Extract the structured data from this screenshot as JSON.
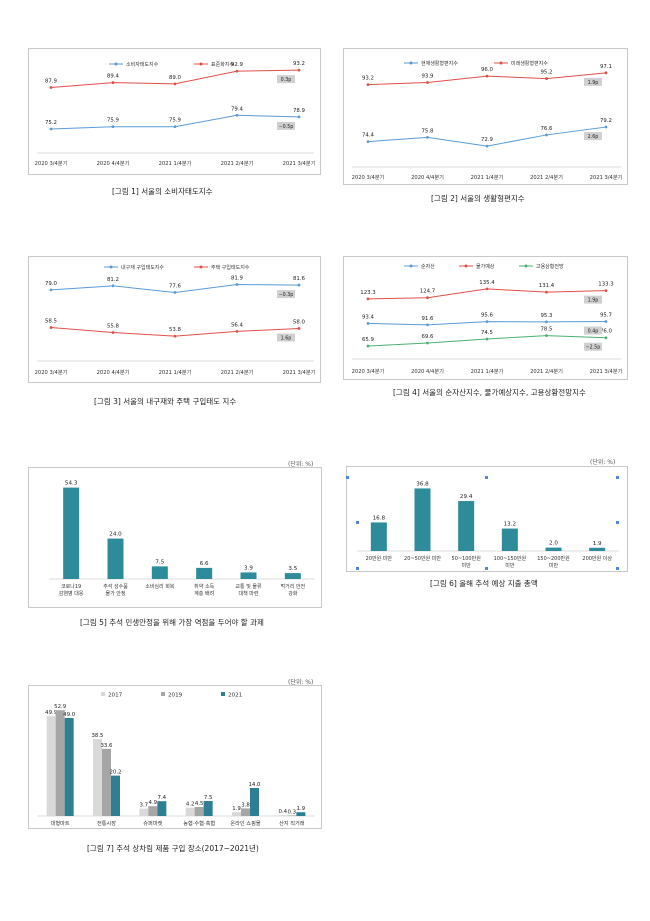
{
  "figures": {
    "f1": {
      "caption": "[그림 1] 서울의 소비자태도지수"
    },
    "f2": {
      "caption": "[그림 2] 서울의 생활형편지수"
    },
    "f3": {
      "caption": "[그림 3] 서울의 내구재와 주택 구입태도 지수"
    },
    "f4": {
      "caption": "[그림 4] 서울의 순자산지수, 물가예상지수, 고용상황전망지수"
    },
    "f5": {
      "caption": "[그림 5] 추석 민생안정을 위해 가장 역점을 두어야 할 과제",
      "unit": "(단위: %)"
    },
    "f6": {
      "caption": "[그림 6] 올해 추석 예상 지출 총액",
      "unit": "(단위: %)"
    },
    "f7": {
      "caption": "[그림 7] 추석 상차림 제품 구입 장소(2017~2021년)",
      "unit": "(단위: %)"
    }
  },
  "chart_data": [
    {
      "id": "f1",
      "type": "line",
      "categories": [
        "2020 3/4분기",
        "2020 4/4분기",
        "2021 1/4분기",
        "2021 2/4분기",
        "2021 3/4분기"
      ],
      "series": [
        {
          "name": "소비자태도지수",
          "values": [
            75.2,
            75.9,
            75.9,
            79.4,
            78.9
          ],
          "color": "#5b9bd5"
        },
        {
          "name": "표준화지수",
          "values": [
            87.9,
            89.4,
            89.0,
            92.9,
            93.2
          ],
          "color": "#e0504a"
        }
      ],
      "ylim": [
        70,
        96
      ],
      "annotations": [
        {
          "text": "0.3p",
          "series": 1,
          "index": 4
        },
        {
          "text": "−0.5p",
          "series": 0,
          "index": 4
        }
      ]
    },
    {
      "id": "f2",
      "type": "line",
      "categories": [
        "2020 3/4분기",
        "2020 4/4분기",
        "2021 1/4분기",
        "2021 2/4분기",
        "2021 3/4분기"
      ],
      "series": [
        {
          "name": "현재생활형편지수",
          "values": [
            74.4,
            75.8,
            72.9,
            76.6,
            79.2
          ],
          "color": "#5b9bd5"
        },
        {
          "name": "미래생활형편지수",
          "values": [
            93.2,
            93.9,
            96.0,
            95.2,
            97.1
          ],
          "color": "#e0504a"
        }
      ],
      "ylim": [
        68,
        101
      ],
      "annotations": [
        {
          "text": "2.6p",
          "series": 0,
          "index": 4
        },
        {
          "text": "1.9p",
          "series": 1,
          "index": 4
        }
      ]
    },
    {
      "id": "f3",
      "type": "line",
      "categories": [
        "2020 3/4분기",
        "2020 4/4분기",
        "2021 1/4분기",
        "2021 2/4분기",
        "2021 3/4분기"
      ],
      "series": [
        {
          "name": "내구재 구입태도지수",
          "values": [
            79.0,
            81.2,
            77.6,
            81.9,
            81.6
          ],
          "color": "#5b9bd5"
        },
        {
          "name": "주택 구입태도지수",
          "values": [
            58.5,
            55.8,
            53.8,
            56.4,
            58.0
          ],
          "color": "#e0504a"
        }
      ],
      "ylim": [
        49,
        86
      ],
      "annotations": [
        {
          "text": "−0.3p",
          "series": 0,
          "index": 4
        },
        {
          "text": "1.6p",
          "series": 1,
          "index": 4
        }
      ]
    },
    {
      "id": "f4",
      "type": "line",
      "categories": [
        "2020 3/4분기",
        "2020 4/4분기",
        "2021 1/4분기",
        "2021 2/4분기",
        "2021 3/4분기"
      ],
      "series": [
        {
          "name": "순자산",
          "values": [
            93.4,
            91.6,
            95.6,
            95.3,
            95.7
          ],
          "color": "#5b9bd5"
        },
        {
          "name": "물가예상",
          "values": [
            123.3,
            124.7,
            135.4,
            131.4,
            133.3
          ],
          "color": "#e0504a"
        },
        {
          "name": "고용상황전망",
          "values": [
            65.9,
            69.6,
            74.5,
            78.5,
            76.0
          ],
          "color": "#4cb070"
        }
      ],
      "ylim": [
        55,
        145
      ],
      "annotations": [
        {
          "text": "1.9p",
          "series": 1,
          "index": 4
        },
        {
          "text": "0.4p",
          "series": 0,
          "index": 4
        },
        {
          "text": "−2.5p",
          "series": 2,
          "index": 4
        }
      ]
    },
    {
      "id": "f5",
      "type": "bar",
      "categories": [
        "코로나19 감염병 대응",
        "추석 성수품 물가 안정",
        "소비심리 회복",
        "취약 소득 계층 배려",
        "교통 및 물류 대책 마련",
        "먹거리 안전 강화"
      ],
      "values": [
        54.3,
        24.0,
        7.5,
        6.6,
        3.9,
        3.5
      ],
      "ylim": [
        0,
        60
      ],
      "color": "#2e8b9a"
    },
    {
      "id": "f6",
      "type": "bar",
      "categories": [
        "20만원 미만",
        "20~50만원 미만",
        "50~100만원 미만",
        "100~150만원 미만",
        "150~200만원 미만",
        "200만원 이상"
      ],
      "values": [
        16.8,
        36.8,
        29.4,
        13.2,
        2.0,
        1.9
      ],
      "ylim": [
        0,
        40
      ],
      "color": "#2e8b9a"
    },
    {
      "id": "f7",
      "type": "bar",
      "categories": [
        "대형마트",
        "전통시장",
        "슈퍼마켓",
        "농협·수협·축협",
        "온라인 쇼핑몰",
        "산지 직거래"
      ],
      "series": [
        {
          "name": "2017",
          "values": [
            49.9,
            38.5,
            3.7,
            4.2,
            1.9,
            0.4
          ],
          "color": "#d9d9d9"
        },
        {
          "name": "2019",
          "values": [
            52.9,
            33.6,
            4.9,
            4.5,
            3.8,
            0.3
          ],
          "color": "#a6a6a6"
        },
        {
          "name": "2021",
          "values": [
            49.0,
            20.2,
            7.4,
            7.5,
            14.0,
            1.9
          ],
          "color": "#2e7f93"
        }
      ],
      "ylim": [
        0,
        56
      ]
    }
  ]
}
